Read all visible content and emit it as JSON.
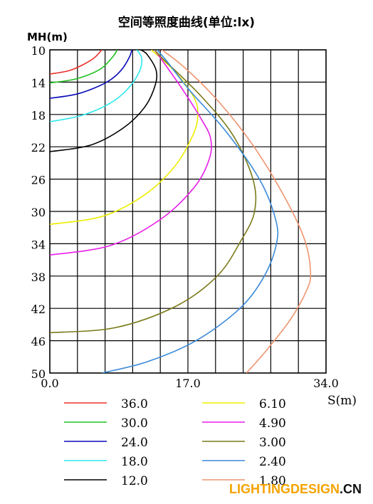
{
  "chart_data": {
    "type": "line",
    "title": "空间等照度曲线(单位:lx)",
    "xlabel": "S(m)",
    "ylabel": "MH(m)",
    "xlim": [
      0,
      34
    ],
    "ylim": [
      10,
      50
    ],
    "x_tick_labels": [
      "0.0",
      "17.0",
      "34.0"
    ],
    "y_tick_labels": [
      "10",
      "14",
      "18",
      "22",
      "26",
      "30",
      "34",
      "38",
      "42",
      "46",
      "50"
    ],
    "grid": true,
    "legend": "bottom",
    "series": [
      {
        "name": "36.0",
        "color": "#e8312a",
        "x": [
          0.0,
          2.6,
          5.2,
          6.4
        ],
        "y": [
          13.0,
          12.5,
          11.2,
          10.0
        ]
      },
      {
        "name": "30.0",
        "color": "#22c022",
        "x": [
          0.0,
          3.2,
          6.2,
          7.8,
          8.3
        ],
        "y": [
          14.1,
          13.6,
          12.4,
          10.8,
          10.0
        ]
      },
      {
        "name": "24.0",
        "color": "#0a0ab8",
        "x": [
          0.0,
          3.6,
          7.0,
          8.8,
          9.8,
          10.1
        ],
        "y": [
          16.0,
          15.4,
          14.0,
          12.5,
          10.9,
          10.0
        ]
      },
      {
        "name": "18.0",
        "color": "#2ee8ee",
        "x": [
          0.0,
          4.0,
          7.6,
          9.8,
          11.1,
          11.3,
          10.7
        ],
        "y": [
          18.9,
          18.1,
          16.5,
          14.6,
          12.5,
          11.0,
          10.0
        ]
      },
      {
        "name": "12.0",
        "color": "#000000",
        "x": [
          0.0,
          5.0,
          9.0,
          11.6,
          12.9,
          13.1,
          12.0,
          11.2
        ],
        "y": [
          22.6,
          21.8,
          19.7,
          17.2,
          14.6,
          12.6,
          10.6,
          10.0
        ]
      },
      {
        "name": "6.10",
        "color": "#eded00",
        "x": [
          0.0,
          6.5,
          11.6,
          15.4,
          17.6,
          18.2,
          17.8,
          15.5,
          12.5
        ],
        "y": [
          31.6,
          30.6,
          28.0,
          24.4,
          20.6,
          18.2,
          16.0,
          12.8,
          10.0
        ]
      },
      {
        "name": "4.90",
        "color": "#e81ee8",
        "x": [
          0.0,
          7.5,
          13.6,
          17.8,
          19.6,
          19.8,
          18.6,
          16.0,
          12.9
        ],
        "y": [
          35.4,
          34.2,
          31.0,
          27.0,
          23.6,
          21.0,
          18.5,
          14.4,
          10.0
        ]
      },
      {
        "name": "3.00",
        "color": "#7a7a1a",
        "x": [
          0.0,
          8.0,
          15.4,
          20.6,
          23.6,
          25.2,
          25.0,
          22.5,
          18.5,
          14.0,
          12.9
        ],
        "y": [
          45.0,
          44.4,
          41.8,
          38.0,
          33.5,
          30.0,
          26.0,
          20.5,
          15.6,
          11.2,
          10.0
        ]
      },
      {
        "name": "2.40",
        "color": "#3a8ad8",
        "x": [
          6.4,
          12.0,
          18.0,
          23.4,
          26.4,
          27.9,
          27.8,
          25.8,
          21.6,
          17.2,
          14.4,
          13.2
        ],
        "y": [
          50.0,
          48.6,
          46.0,
          42.0,
          38.0,
          34.0,
          31.0,
          26.0,
          20.0,
          15.0,
          11.4,
          10.0
        ]
      },
      {
        "name": "1.80",
        "color": "#ee946e",
        "x": [
          24.2,
          26.5,
          29.6,
          31.6,
          32.1,
          31.4,
          29.0,
          25.0,
          20.6,
          16.6,
          13.8
        ],
        "y": [
          50.0,
          47.4,
          43.4,
          39.8,
          37.6,
          33.6,
          28.4,
          21.8,
          16.2,
          12.2,
          10.0
        ]
      }
    ]
  },
  "watermark": {
    "part1": "LIGHTINGDESIGN",
    "part2": ".CN",
    "color1": "#f5a300",
    "color2": "#111111"
  }
}
